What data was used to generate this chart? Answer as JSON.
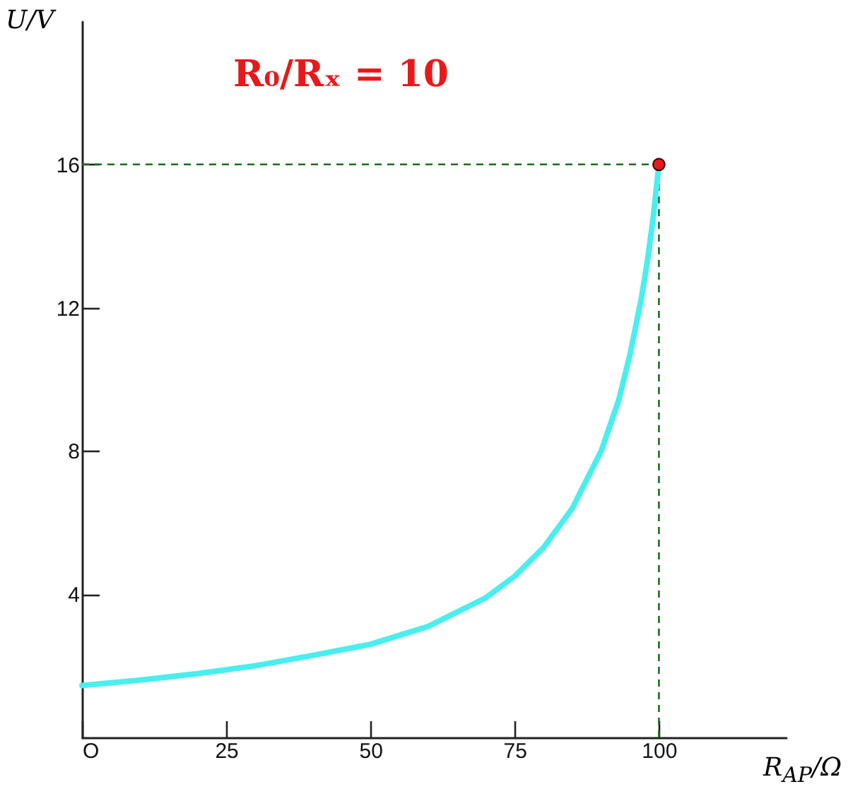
{
  "chart_data": {
    "type": "line",
    "xlabel": "R$_{AP}$/Ω",
    "ylabel": "U/V",
    "annotations": [
      "R₀/Rₓ = 10"
    ],
    "xlim": [
      0,
      122
    ],
    "ylim": [
      0,
      20
    ],
    "xticks": [
      {
        "value": 0,
        "label": "O"
      },
      25,
      50,
      75,
      100
    ],
    "yticks": [
      4,
      8,
      12,
      16
    ],
    "x": [
      0,
      10,
      20,
      30,
      40,
      50,
      60,
      70,
      75,
      80,
      85,
      90,
      93,
      95,
      97,
      98,
      99,
      100
    ],
    "series": [
      {
        "color": "#4beeee",
        "values": [
          1.45,
          1.6,
          1.78,
          2.0,
          2.29,
          2.6,
          3.1,
          3.9,
          4.5,
          5.3,
          6.4,
          8.0,
          9.4,
          10.7,
          12.3,
          13.3,
          14.5,
          16
        ]
      },
      {
        "type": "scatter",
        "marker": "circle",
        "color": "#e8191b",
        "x": [
          100
        ],
        "values": [
          16
        ]
      }
    ],
    "ref_lines": [
      {
        "axis": "y",
        "value": 16,
        "color": "#1a6e1a",
        "line_style": "dashed"
      },
      {
        "axis": "x",
        "value": 100,
        "color": "#1a6e1a",
        "line_style": "dashed"
      }
    ],
    "line_style": "solid"
  }
}
